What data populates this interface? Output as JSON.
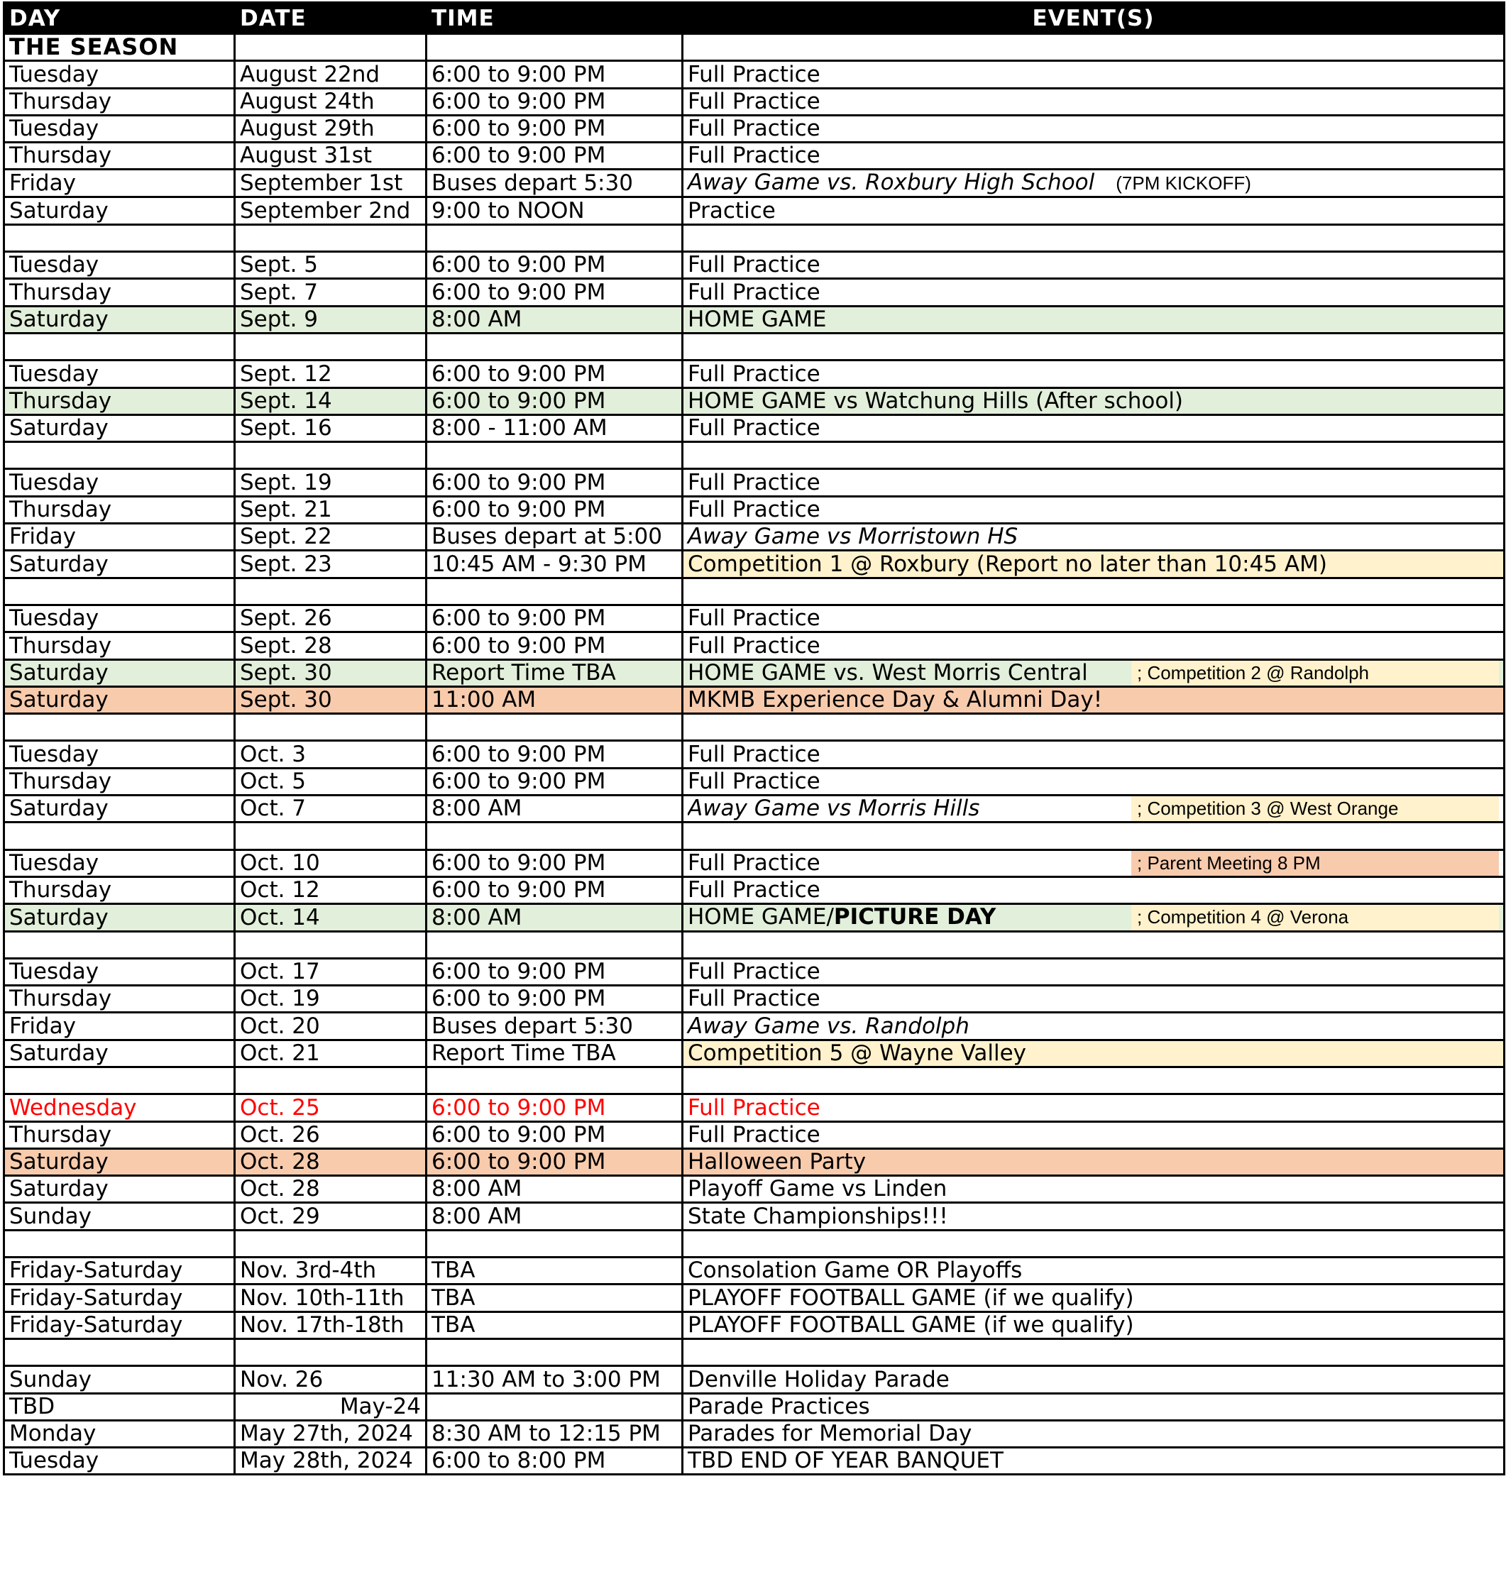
{
  "headers": {
    "day": "DAY",
    "date": "DATE",
    "time": "TIME",
    "events": "EVENT(S)"
  },
  "season_label": "THE SEASON",
  "rows": [
    {
      "day": "Tuesday",
      "date": "August 22nd",
      "time": "6:00 to 9:00 PM",
      "event": "Full Practice"
    },
    {
      "day": "Thursday",
      "date": "August 24th",
      "time": "6:00 to 9:00 PM",
      "event": "Full Practice"
    },
    {
      "day": "Tuesday",
      "date": "August 29th",
      "time": "6:00 to 9:00 PM",
      "event": "Full Practice"
    },
    {
      "day": "Thursday",
      "date": "August 31st",
      "time": "6:00 to 9:00 PM",
      "event": "Full Practice"
    },
    {
      "day": "Friday",
      "date": "September 1st",
      "time": "Buses depart 5:30",
      "event": "Away Game vs. Roxbury High School",
      "event_note": "(7PM KICKOFF)",
      "style": "italic"
    },
    {
      "day": "Saturday",
      "date": "September 2nd",
      "time": "9:00 to NOON",
      "event": "Practice"
    },
    {
      "blank": true
    },
    {
      "day": "Tuesday",
      "date": "Sept. 5",
      "time": "6:00 to 9:00 PM",
      "event": "Full Practice"
    },
    {
      "day": "Thursday",
      "date": "Sept. 7",
      "time": "6:00 to 9:00 PM",
      "event": "Full Practice"
    },
    {
      "day": "Saturday",
      "date": "Sept. 9",
      "time": "8:00 AM",
      "event": "HOME GAME",
      "row_color": "green"
    },
    {
      "blank": true
    },
    {
      "day": "Tuesday",
      "date": "Sept. 12",
      "time": "6:00 to 9:00 PM",
      "event": "Full Practice"
    },
    {
      "day": "Thursday",
      "date": "Sept. 14",
      "time": "6:00 to 9:00 PM",
      "event": "HOME GAME vs Watchung Hills (After school)",
      "row_color": "green"
    },
    {
      "day": "Saturday",
      "date": "Sept. 16",
      "time": "8:00 - 11:00 AM",
      "event": "Full Practice"
    },
    {
      "blank": true
    },
    {
      "day": "Tuesday",
      "date": "Sept. 19",
      "time": "6:00 to 9:00 PM",
      "event": "Full Practice"
    },
    {
      "day": "Thursday",
      "date": "Sept. 21",
      "time": "6:00 to 9:00 PM",
      "event": "Full Practice"
    },
    {
      "day": "Friday",
      "date": "Sept. 22",
      "time": "Buses depart at 5:00",
      "event": "Away Game vs Morristown HS",
      "style": "italic"
    },
    {
      "day": "Saturday",
      "date": "Sept. 23",
      "time": "10:45 AM - 9:30 PM",
      "event": "Competition 1 @ Roxbury (Report no later than 10:45 AM)",
      "event_color": "yellow"
    },
    {
      "blank": true
    },
    {
      "day": "Tuesday",
      "date": "Sept. 26",
      "time": "6:00 to 9:00 PM",
      "event": "Full Practice"
    },
    {
      "day": "Thursday",
      "date": "Sept. 28",
      "time": "6:00 to 9:00 PM",
      "event": "Full Practice"
    },
    {
      "day": "Saturday",
      "date": "Sept. 30",
      "time": "Report Time TBA",
      "event": "HOME GAME vs. West Morris Central",
      "side_note": "; Competition 2 @ Randolph",
      "side_color": "yellow",
      "row_color": "green"
    },
    {
      "day": "Saturday",
      "date": "Sept. 30",
      "time": "11:00 AM",
      "event": "MKMB Experience Day & Alumni Day!",
      "row_color": "orange"
    },
    {
      "blank": true
    },
    {
      "day": "Tuesday",
      "date": "Oct. 3",
      "time": "6:00 to 9:00 PM",
      "event": "Full Practice"
    },
    {
      "day": "Thursday",
      "date": "Oct. 5",
      "time": "6:00 to 9:00 PM",
      "event": "Full Practice"
    },
    {
      "day": "Saturday",
      "date": "Oct. 7",
      "time": "8:00 AM",
      "event": "Away Game vs Morris Hills",
      "style": "italic",
      "side_note": "; Competition 3 @ West Orange",
      "side_color": "yellow"
    },
    {
      "blank": true
    },
    {
      "day": "Tuesday",
      "date": "Oct. 10",
      "time": "6:00 to 9:00 PM",
      "event": "Full Practice",
      "side_note": "; Parent Meeting 8 PM",
      "side_color": "orange"
    },
    {
      "day": "Thursday",
      "date": "Oct. 12",
      "time": "6:00 to 9:00 PM",
      "event": "Full Practice"
    },
    {
      "day": "Saturday",
      "date": "Oct. 14",
      "time": "8:00 AM",
      "event": "HOME GAME/",
      "event_bold": "PICTURE DAY",
      "side_note": "; Competition 4 @ Verona",
      "side_color": "yellow",
      "row_color": "green"
    },
    {
      "blank": true
    },
    {
      "day": "Tuesday",
      "date": "Oct. 17",
      "time": "6:00 to 9:00 PM",
      "event": "Full Practice"
    },
    {
      "day": "Thursday",
      "date": "Oct. 19",
      "time": "6:00 to 9:00 PM",
      "event": "Full Practice"
    },
    {
      "day": "Friday",
      "date": "Oct. 20",
      "time": "Buses depart 5:30",
      "event": "Away Game vs. Randolph",
      "style": "italic"
    },
    {
      "day": "Saturday",
      "date": "Oct. 21",
      "time": "Report Time TBA",
      "event": "Competition 5 @ Wayne Valley",
      "event_color": "yellow"
    },
    {
      "blank": true
    },
    {
      "day": "Wednesday",
      "date": "Oct. 25",
      "time": "6:00 to 9:00 PM",
      "event": "Full Practice",
      "row_color": "red"
    },
    {
      "day": "Thursday",
      "date": "Oct. 26",
      "time": "6:00 to 9:00 PM",
      "event": "Full Practice"
    },
    {
      "day": "Saturday",
      "date": "Oct. 28",
      "time": "6:00 to 9:00 PM",
      "event": "Halloween Party",
      "row_color": "orange"
    },
    {
      "day": "Saturday",
      "date": "Oct. 28",
      "time": "8:00 AM",
      "event": "Playoff Game vs Linden"
    },
    {
      "day": "Sunday",
      "date": "Oct. 29",
      "time": "8:00 AM",
      "event": "State Championships!!!"
    },
    {
      "blank": true
    },
    {
      "day": "Friday-Saturday",
      "date": "Nov. 3rd-4th",
      "time": "TBA",
      "event": "Consolation Game OR Playoffs"
    },
    {
      "day": "Friday-Saturday",
      "date": "Nov. 10th-11th",
      "time": "TBA",
      "event": "PLAYOFF FOOTBALL GAME  (if we qualify)"
    },
    {
      "day": "Friday-Saturday",
      "date": "Nov. 17th-18th",
      "time": "TBA",
      "event": "PLAYOFF FOOTBALL GAME  (if we qualify)"
    },
    {
      "blank": true
    },
    {
      "day": "Sunday",
      "date": "Nov. 26",
      "time": "11:30 AM to 3:00 PM",
      "event": "Denville Holiday Parade"
    },
    {
      "day": "TBD",
      "date": "May-24",
      "date_align": "right",
      "time": "",
      "event": "Parade Practices"
    },
    {
      "day": "Monday",
      "date": "May 27th, 2024",
      "time": "8:30 AM to 12:15 PM",
      "event": "Parades for Memorial Day"
    },
    {
      "day": "Tuesday",
      "date": "May 28th, 2024",
      "time": "6:00 to 8:00 PM",
      "event": "TBD END OF YEAR BANQUET"
    }
  ]
}
